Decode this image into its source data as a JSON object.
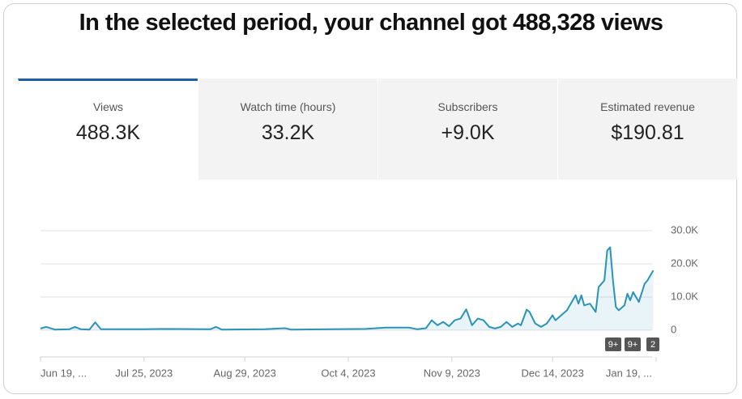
{
  "header": {
    "title": "In the selected period, your channel got 488,328 views"
  },
  "tabs": [
    {
      "label": "Views",
      "value": "488.3K"
    },
    {
      "label": "Watch time (hours)",
      "value": "33.2K"
    },
    {
      "label": "Subscribers",
      "value": "+9.0K"
    },
    {
      "label": "Estimated revenue",
      "value": "$190.81"
    }
  ],
  "chart_data": {
    "type": "line",
    "color": "#2a93b8",
    "x": [
      "2023-06-19",
      "2023-06-21",
      "2023-06-24",
      "2023-06-29",
      "2023-07-01",
      "2023-07-03",
      "2023-07-06",
      "2023-07-08",
      "2023-07-10",
      "2023-07-25",
      "2023-08-01",
      "2023-08-17",
      "2023-08-19",
      "2023-08-21",
      "2023-09-05",
      "2023-09-12",
      "2023-09-14",
      "2023-10-10",
      "2023-10-17",
      "2023-10-25",
      "2023-10-28",
      "2023-10-31",
      "2023-11-02",
      "2023-11-04",
      "2023-11-06",
      "2023-11-08",
      "2023-11-10",
      "2023-11-12",
      "2023-11-14",
      "2023-11-16",
      "2023-11-18",
      "2023-11-20",
      "2023-11-22",
      "2023-11-24",
      "2023-11-26",
      "2023-11-28",
      "2023-11-30",
      "2023-12-02",
      "2023-12-03",
      "2023-12-05",
      "2023-12-06",
      "2023-12-08",
      "2023-12-10",
      "2023-12-12",
      "2023-12-14",
      "2023-12-15",
      "2023-12-19",
      "2023-12-22",
      "2023-12-23",
      "2023-12-24",
      "2023-12-25",
      "2023-12-27",
      "2023-12-29",
      "2023-12-30",
      "2024-01-01",
      "2024-01-02",
      "2024-01-03",
      "2024-01-04",
      "2024-01-05",
      "2024-01-06",
      "2024-01-08",
      "2024-01-09",
      "2024-01-10",
      "2024-01-11",
      "2024-01-13",
      "2024-01-15",
      "2024-01-16",
      "2024-01-18"
    ],
    "values": [
      500,
      1000,
      200,
      300,
      1000,
      300,
      200,
      2400,
      300,
      300,
      400,
      300,
      1000,
      200,
      300,
      600,
      200,
      400,
      800,
      800,
      300,
      600,
      3000,
      1500,
      2500,
      1200,
      3000,
      3500,
      6300,
      1500,
      3500,
      3000,
      1000,
      500,
      1000,
      2500,
      1000,
      2000,
      1500,
      6200,
      5500,
      2000,
      1000,
      2000,
      4500,
      3000,
      6000,
      10500,
      8000,
      10500,
      7500,
      8000,
      5500,
      13000,
      15000,
      24000,
      25000,
      15000,
      7000,
      6000,
      7500,
      11000,
      9000,
      11500,
      8500,
      14000,
      15000,
      18000
    ],
    "xlim": [
      "2023-06-19",
      "2024-01-19"
    ],
    "xticks": [
      {
        "value": "2023-06-19",
        "label": "Jun 19, ..."
      },
      {
        "value": "2023-07-25",
        "label": "Jul 25, 2023"
      },
      {
        "value": "2023-08-29",
        "label": "Aug 29, 2023"
      },
      {
        "value": "2023-10-04",
        "label": "Oct 4, 2023"
      },
      {
        "value": "2023-11-09",
        "label": "Nov 9, 2023"
      },
      {
        "value": "2023-12-14",
        "label": "Dec 14, 2023"
      },
      {
        "value": "2024-01-19",
        "label": "Jan 19, ..."
      }
    ],
    "ylim": [
      0,
      30000
    ],
    "yticks": [
      0,
      {
        "value": 10000,
        "label": "10.0K"
      },
      {
        "value": 20000,
        "label": "20.0K"
      },
      {
        "value": 30000,
        "label": "30.0K"
      }
    ],
    "grid": true,
    "annotations": [
      "9+",
      "9+",
      "2"
    ]
  }
}
